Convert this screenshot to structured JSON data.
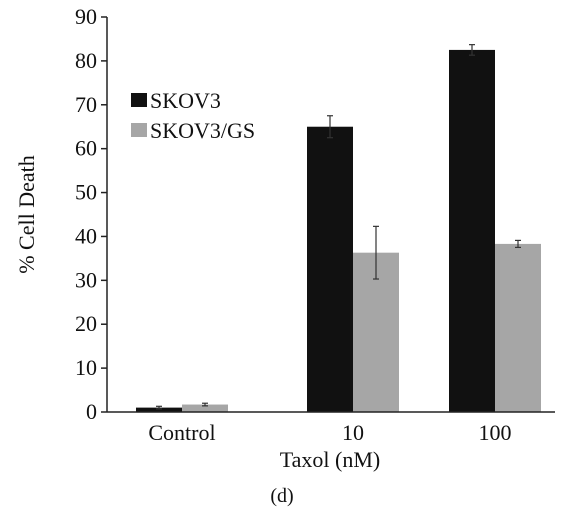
{
  "chart_data": {
    "type": "bar",
    "categories": [
      "Control",
      "10",
      "100"
    ],
    "series": [
      {
        "name": "SKOV3",
        "color": "#111111",
        "values": [
          1.0,
          65.0,
          82.5
        ],
        "errors": [
          0.3,
          2.5,
          1.2
        ]
      },
      {
        "name": "SKOV3/GS",
        "color": "#a6a6a6",
        "values": [
          1.7,
          36.3,
          38.3
        ],
        "errors": [
          0.3,
          6.0,
          0.8
        ]
      }
    ],
    "xlabel": "Taxol (nM)",
    "ylabel": "% Cell Death",
    "ylim": [
      0,
      90
    ],
    "yticks": [
      0,
      10,
      20,
      30,
      40,
      50,
      60,
      70,
      80,
      90
    ],
    "grid": false,
    "legend": "upper-left",
    "panel_label": "(d)"
  }
}
